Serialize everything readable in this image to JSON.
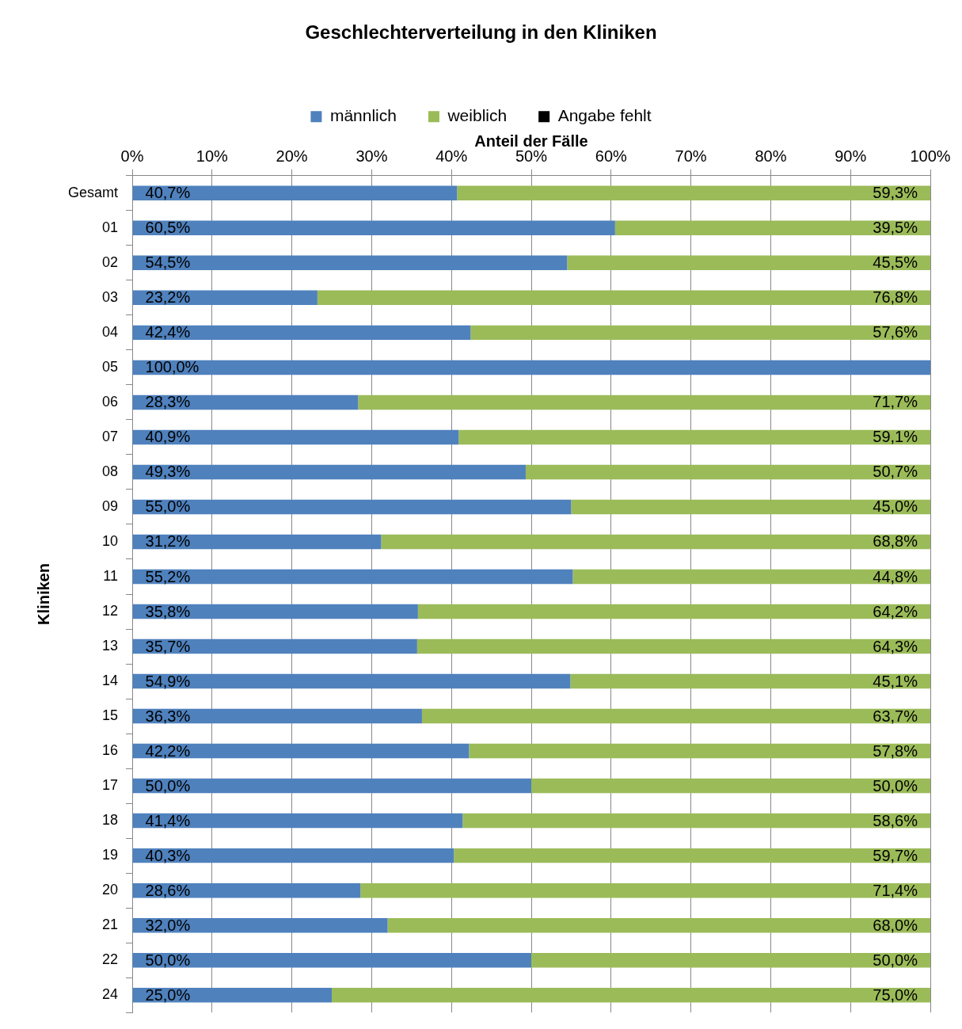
{
  "chart_data": {
    "type": "bar",
    "orientation": "horizontal",
    "stacked": true,
    "title": "Geschlechterverteilung in den Kliniken",
    "xlabel": "Anteil der Fälle",
    "ylabel": "Kliniken",
    "categories": [
      "Gesamt",
      "01",
      "02",
      "03",
      "04",
      "05",
      "06",
      "07",
      "08",
      "09",
      "10",
      "11",
      "12",
      "13",
      "14",
      "15",
      "16",
      "17",
      "18",
      "19",
      "20",
      "21",
      "22",
      "24"
    ],
    "series": [
      {
        "name": "männlich",
        "color": "#4f81bd",
        "values": [
          40.7,
          60.5,
          54.5,
          23.2,
          42.4,
          100.0,
          28.3,
          40.9,
          49.3,
          55.0,
          31.2,
          55.2,
          35.8,
          35.7,
          54.9,
          36.3,
          42.2,
          50.0,
          41.4,
          40.3,
          28.6,
          32.0,
          50.0,
          25.0
        ],
        "value_labels": [
          "40,7%",
          "60,5%",
          "54,5%",
          "23,2%",
          "42,4%",
          "100,0%",
          "28,3%",
          "40,9%",
          "49,3%",
          "55,0%",
          "31,2%",
          "55,2%",
          "35,8%",
          "35,7%",
          "54,9%",
          "36,3%",
          "42,2%",
          "50,0%",
          "41,4%",
          "40,3%",
          "28,6%",
          "32,0%",
          "50,0%",
          "25,0%"
        ]
      },
      {
        "name": "weiblich",
        "color": "#9bbb59",
        "values": [
          59.3,
          39.5,
          45.5,
          76.8,
          57.6,
          0,
          71.7,
          59.1,
          50.7,
          45.0,
          68.8,
          44.8,
          64.2,
          64.3,
          45.1,
          63.7,
          57.8,
          50.0,
          58.6,
          59.7,
          71.4,
          68.0,
          50.0,
          75.0
        ],
        "value_labels": [
          "59,3%",
          "39,5%",
          "45,5%",
          "76,8%",
          "57,6%",
          null,
          "71,7%",
          "59,1%",
          "50,7%",
          "45,0%",
          "68,8%",
          "44,8%",
          "64,2%",
          "64,3%",
          "45,1%",
          "63,7%",
          "57,8%",
          "50,0%",
          "58,6%",
          "59,7%",
          "71,4%",
          "68,0%",
          "50,0%",
          "75,0%"
        ]
      },
      {
        "name": "Angabe fehlt",
        "color": "#000000",
        "values": [
          0,
          0,
          0,
          0,
          0,
          0,
          0,
          0,
          0,
          0,
          0,
          0,
          0,
          0,
          0,
          0,
          0,
          0,
          0,
          0,
          0,
          0,
          0,
          0
        ]
      }
    ],
    "xlim": [
      0,
      100
    ],
    "xticks": [
      {
        "value": 0,
        "label": "0%"
      },
      {
        "value": 10,
        "label": "10%"
      },
      {
        "value": 20,
        "label": "20%"
      },
      {
        "value": 30,
        "label": "30%"
      },
      {
        "value": 40,
        "label": "40%"
      },
      {
        "value": 50,
        "label": "50%"
      },
      {
        "value": 60,
        "label": "60%"
      },
      {
        "value": 70,
        "label": "70%"
      },
      {
        "value": 80,
        "label": "80%"
      },
      {
        "value": 90,
        "label": "90%"
      },
      {
        "value": 100,
        "label": "100%"
      }
    ],
    "grid": "x",
    "legend": "top"
  }
}
